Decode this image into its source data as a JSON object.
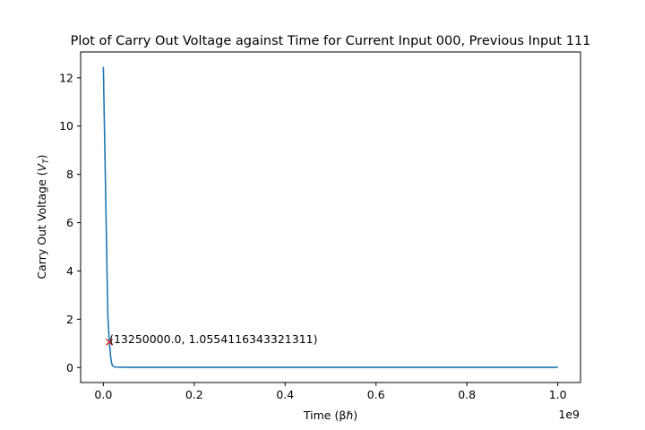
{
  "chart_data": {
    "type": "line",
    "title": "Plot of Carry Out Voltage against Time for Current Input 000, Previous Input 111",
    "xlabel": "Time (βℏ)",
    "ylabel_prefix": "Carry Out Voltage (",
    "ylabel_var": "V",
    "ylabel_sub": "T",
    "ylabel_suffix": ")",
    "x_offset_label": "1e9",
    "xlim": [
      -0.05,
      1.05
    ],
    "ylim": [
      -0.62,
      13.07
    ],
    "x_ticks": [
      0.0,
      0.2,
      0.4,
      0.6,
      0.8,
      1.0
    ],
    "x_tick_labels": [
      "0.0",
      "0.2",
      "0.4",
      "0.6",
      "0.8",
      "1.0"
    ],
    "y_ticks": [
      0,
      2,
      4,
      6,
      8,
      10,
      12
    ],
    "y_tick_labels": [
      "0",
      "2",
      "4",
      "6",
      "8",
      "10",
      "12"
    ],
    "grid": false,
    "series": [
      {
        "color": "#1f77b4",
        "x": [
          0.0,
          0.002,
          0.004,
          0.006,
          0.008,
          0.01,
          0.01325,
          0.016,
          0.018,
          0.02,
          0.025,
          0.05,
          0.1,
          0.2,
          0.4,
          0.6,
          0.8,
          1.0
        ],
        "y": [
          12.45,
          10.4,
          8.3,
          6.2,
          4.1,
          2.1,
          1.055,
          0.45,
          0.2,
          0.08,
          0.02,
          0.01,
          0.01,
          0.01,
          0.01,
          0.01,
          0.01,
          0.01
        ]
      }
    ],
    "marker": {
      "x": 0.01325,
      "y": 1.0554116343321311,
      "symbol": "x",
      "color": "#d62728",
      "label": "(13250000.0, 1.0554116343321311)"
    }
  }
}
